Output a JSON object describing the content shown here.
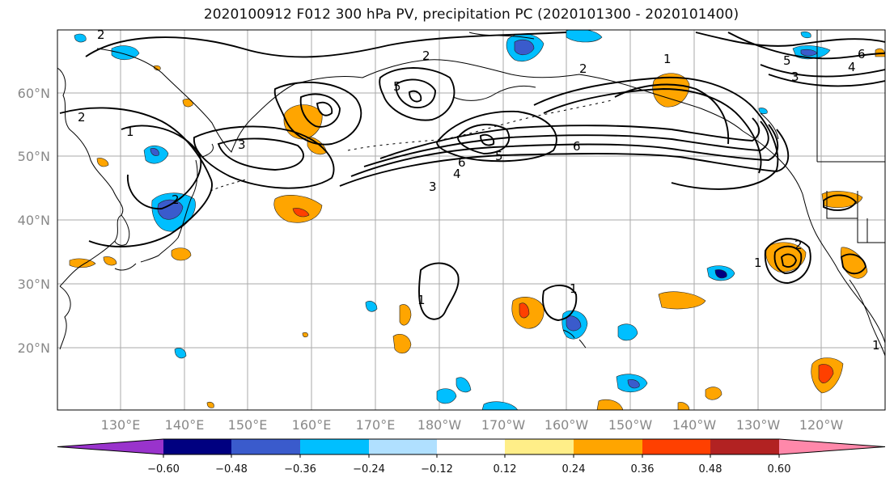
{
  "title": "2020100912 F012 300 hPa PV, precipitation PC (2020101300 - 2020101400)",
  "map": {
    "lat_labels": [
      "60°N",
      "50°N",
      "40°N",
      "30°N",
      "20°N"
    ],
    "lon_labels": [
      "130°E",
      "140°E",
      "150°E",
      "160°E",
      "170°E",
      "180°W",
      "170°W",
      "160°W",
      "150°W",
      "140°W",
      "130°W",
      "120°W"
    ],
    "contour_labels": [
      "1",
      "2",
      "3",
      "4",
      "5",
      "6"
    ]
  },
  "colorbar": {
    "colors": [
      "#9933cc",
      "#000080",
      "#3a5bcc",
      "#00bfff",
      "#b0e0ff",
      "#ffffff",
      "#ffee88",
      "#ffa500",
      "#ff4000",
      "#b22222",
      "#ff88aa"
    ],
    "tick_labels": [
      "−0.60",
      "−0.48",
      "−0.36",
      "−0.24",
      "−0.12",
      "0.12",
      "0.24",
      "0.36",
      "0.48",
      "0.60"
    ]
  }
}
